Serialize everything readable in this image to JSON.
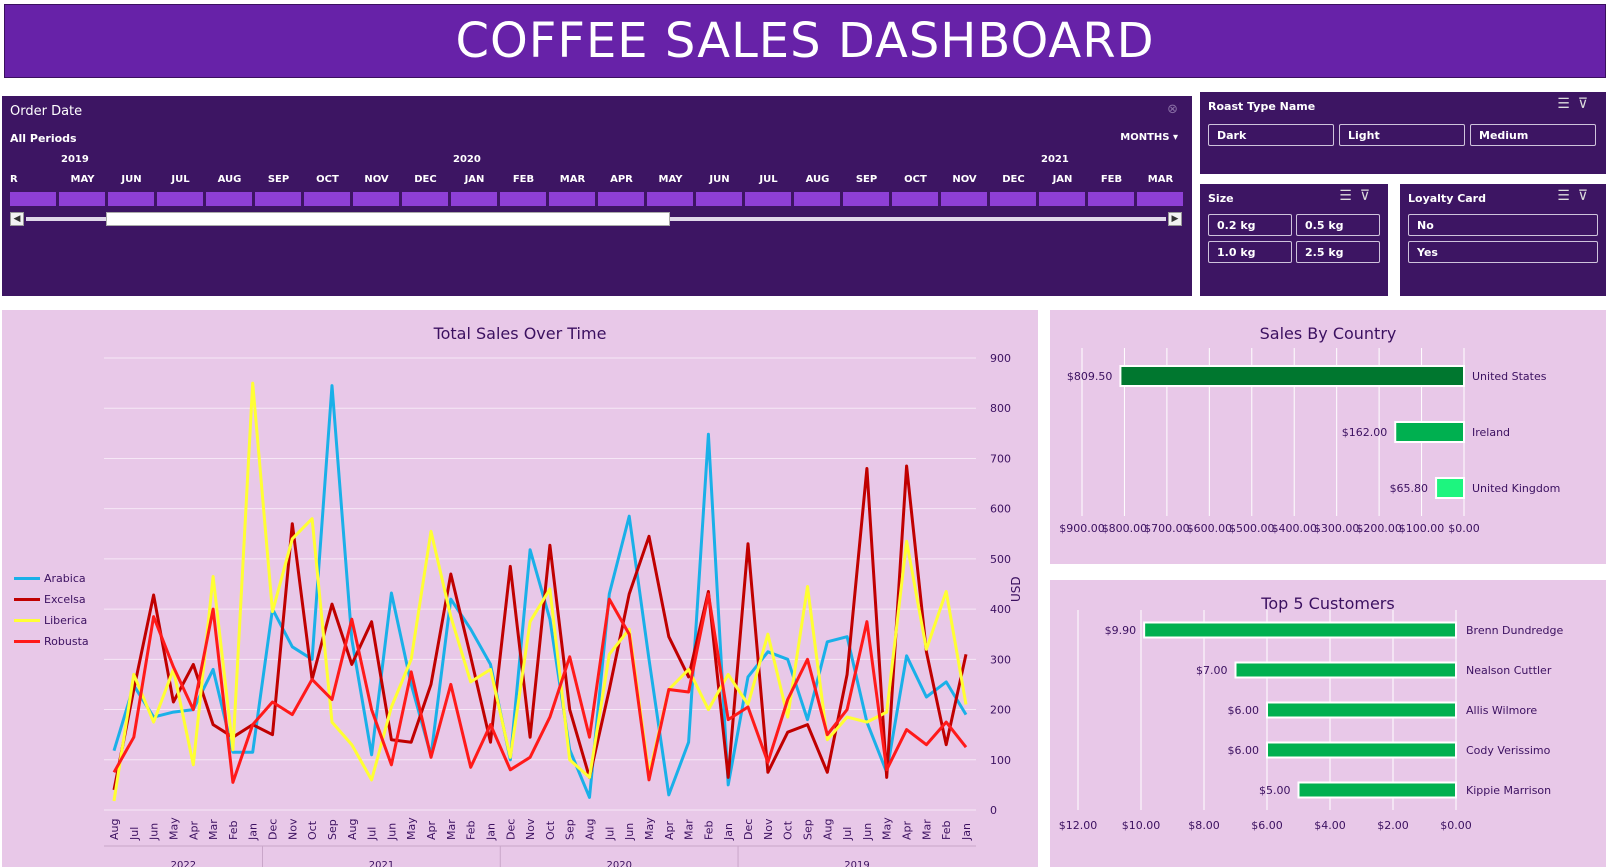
{
  "title": "COFFEE SALES DASHBOARD",
  "timeline": {
    "header": "Order Date",
    "filter_icon": "clear-filter-icon",
    "periods": "All Periods",
    "level": "MONTHS",
    "years": [
      "2019",
      "2020",
      "2021"
    ],
    "months": [
      "R",
      "MAY",
      "JUN",
      "JUL",
      "AUG",
      "SEP",
      "OCT",
      "NOV",
      "DEC",
      "JAN",
      "FEB",
      "MAR",
      "APR",
      "MAY",
      "JUN",
      "JUL",
      "AUG",
      "SEP",
      "OCT",
      "NOV",
      "DEC",
      "JAN",
      "FEB",
      "MAR"
    ],
    "scroll_left": "◀",
    "scroll_right": "▶"
  },
  "slicers": {
    "roast": {
      "title": "Roast Type Name",
      "items": [
        "Dark",
        "Light",
        "Medium"
      ]
    },
    "size": {
      "title": "Size",
      "items": [
        "0.2 kg",
        "0.5 kg",
        "1.0 kg",
        "2.5 kg"
      ]
    },
    "loyalty": {
      "title": "Loyalty Card",
      "items": [
        "No",
        "Yes"
      ]
    }
  },
  "colors": {
    "arabica": "#1ab0e8",
    "excelsa": "#c00000",
    "liberica": "#ffff33",
    "robusta": "#ff1a1a",
    "country_bar": "#00b050",
    "customer_bar": "#00b050",
    "header_purple": "#6722a8",
    "panel_dark": "#3d1563",
    "panel_light": "#e8c8e8"
  },
  "chart_data": [
    {
      "type": "line",
      "title": "Total Sales Over Time",
      "ylabel": "USD",
      "ylim": [
        0,
        900
      ],
      "yticks": [
        0,
        100,
        200,
        300,
        400,
        500,
        600,
        700,
        800,
        900
      ],
      "categories": [
        "Aug",
        "Jul",
        "Jun",
        "May",
        "Apr",
        "Mar",
        "Feb",
        "Jan",
        "Dec",
        "Nov",
        "Oct",
        "Sep",
        "Aug",
        "Jul",
        "Jun",
        "May",
        "Apr",
        "Mar",
        "Feb",
        "Jan",
        "Dec",
        "Nov",
        "Oct",
        "Sep",
        "Aug",
        "Jul",
        "Jun",
        "May",
        "Apr",
        "Mar",
        "Feb",
        "Jan",
        "Dec",
        "Nov",
        "Oct",
        "Sep",
        "Aug",
        "Jul",
        "Jun",
        "May",
        "Apr",
        "Mar",
        "Feb",
        "Jan"
      ],
      "year_groups": [
        "2022",
        "2021",
        "2020",
        "2019"
      ],
      "series": [
        {
          "name": "Arabica",
          "values": [
            118,
            248,
            185,
            195,
            200,
            280,
            115,
            115,
            400,
            325,
            300,
            845,
            340,
            110,
            432,
            250,
            108,
            420,
            360,
            290,
            100,
            518,
            380,
            120,
            25,
            430,
            585,
            300,
            30,
            135,
            748,
            50,
            265,
            315,
            300,
            180,
            335,
            345,
            175,
            75,
            307,
            225,
            255,
            190
          ]
        },
        {
          "name": "Excelsa",
          "values": [
            40,
            240,
            428,
            215,
            290,
            170,
            145,
            170,
            150,
            570,
            260,
            410,
            290,
            375,
            140,
            135,
            250,
            470,
            305,
            135,
            485,
            145,
            527,
            200,
            65,
            240,
            430,
            545,
            345,
            265,
            435,
            65,
            530,
            75,
            155,
            170,
            75,
            270,
            680,
            65,
            685,
            315,
            130,
            310
          ]
        },
        {
          "name": "Liberica",
          "values": [
            18,
            270,
            175,
            280,
            90,
            465,
            120,
            850,
            395,
            540,
            580,
            175,
            130,
            60,
            205,
            300,
            555,
            385,
            255,
            280,
            105,
            375,
            440,
            100,
            65,
            310,
            360,
            70,
            240,
            280,
            200,
            270,
            210,
            350,
            185,
            445,
            140,
            185,
            175,
            195,
            535,
            320,
            435,
            210
          ]
        },
        {
          "name": "Robusta",
          "values": [
            75,
            145,
            385,
            285,
            200,
            400,
            55,
            170,
            215,
            190,
            260,
            220,
            380,
            200,
            90,
            275,
            105,
            250,
            85,
            170,
            80,
            105,
            185,
            305,
            145,
            420,
            350,
            60,
            240,
            235,
            430,
            180,
            205,
            95,
            220,
            300,
            150,
            200,
            375,
            80,
            160,
            130,
            175,
            125
          ]
        }
      ]
    },
    {
      "type": "bar",
      "title": "Sales By Country",
      "categories": [
        "United States",
        "Ireland",
        "United Kingdom"
      ],
      "values": [
        809.5,
        162.0,
        65.8
      ],
      "value_labels": [
        "$809.50",
        "$162.00",
        "$65.80"
      ],
      "xlim": [
        0,
        900
      ],
      "xticks": [
        "$900.00",
        "$800.00",
        "$700.00",
        "$600.00",
        "$500.00",
        "$400.00",
        "$300.00",
        "$200.00",
        "$100.00",
        "$0.00"
      ],
      "reversed_axis": true
    },
    {
      "type": "bar",
      "title": "Top 5 Customers",
      "categories": [
        "Brenn Dundredge",
        "Nealson Cuttler",
        "Allis Wilmore",
        "Cody Verissimo",
        "Kippie Marrison"
      ],
      "values": [
        9.9,
        7.0,
        6.0,
        6.0,
        5.0
      ],
      "value_labels": [
        "$9.90",
        "$7.00",
        "$6.00",
        "$6.00",
        "$5.00"
      ],
      "xlim": [
        0,
        12
      ],
      "xticks": [
        "$12.00",
        "$10.00",
        "$8.00",
        "$6.00",
        "$4.00",
        "$2.00",
        "$0.00"
      ],
      "reversed_axis": true
    }
  ]
}
